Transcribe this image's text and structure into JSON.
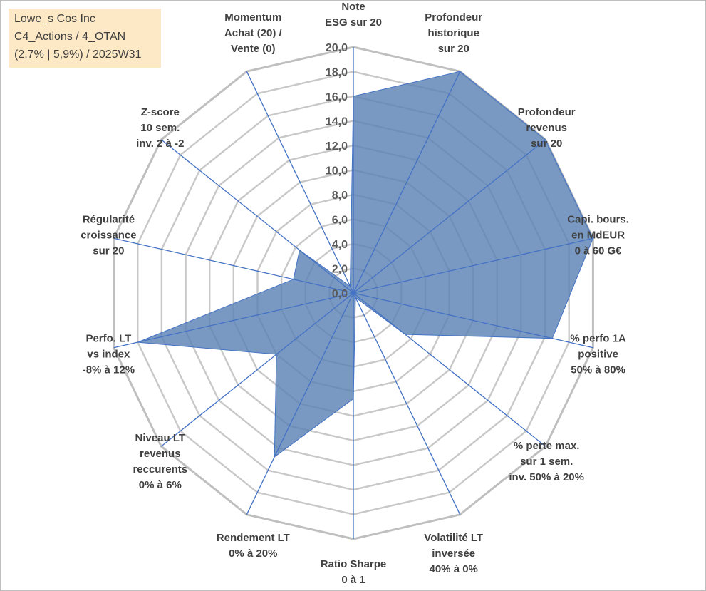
{
  "title_box": {
    "line1": "Lowe_s Cos Inc",
    "line2": "C4_Actions / 4_OTAN",
    "line3": "(2,7% | 5,9%) / 2025W31"
  },
  "colors": {
    "fill": "#5b83b4",
    "axis": "#4472c4",
    "grid": "#c8c8c8",
    "title_bg": "#fde9c6"
  },
  "chart_data": {
    "type": "radar",
    "rmin": 0,
    "rmax": 20,
    "tick_step": 2,
    "tick_labels": [
      "0,0",
      "2,0",
      "4,0",
      "6,0",
      "8,0",
      "10,0",
      "12,0",
      "14,0",
      "16,0",
      "18,0",
      "20,0"
    ],
    "grid": true,
    "axes": [
      {
        "label": [
          "Note",
          "ESG sur 20"
        ],
        "value": 16.0
      },
      {
        "label": [
          "Profondeur",
          "historique",
          "sur 20"
        ],
        "value": 20.0
      },
      {
        "label": [
          "Profondeur",
          "revenus",
          "sur 20"
        ],
        "value": 20.0
      },
      {
        "label": [
          "Capi. bours.",
          "en MdEUR",
          "0 à 60 G€"
        ],
        "value": 20.0
      },
      {
        "label": [
          "% perfo 1A",
          "positive",
          "50% à 80%"
        ],
        "value": 16.6
      },
      {
        "label": [
          "% perte max.",
          "sur 1 sem.",
          "inv. 50% à 20%"
        ],
        "value": 5.4
      },
      {
        "label": [
          "Volatilité LT",
          "inversée",
          "40% à 0%"
        ],
        "value": 0.4
      },
      {
        "label": [
          "Ratio Sharpe",
          "0 à 1"
        ],
        "value": 8.6
      },
      {
        "label": [
          "Rendement LT",
          "0% à 20%"
        ],
        "value": 14.8
      },
      {
        "label": [
          "Niveau LT",
          "revenus",
          "reccurents",
          "0% à 6%"
        ],
        "value": 8.0
      },
      {
        "label": [
          "Perfo. LT",
          "vs index",
          "-8% à 12%"
        ],
        "value": 18.0
      },
      {
        "label": [
          "Régularité",
          "croissance",
          "sur 20"
        ],
        "value": 5.0
      },
      {
        "label": [
          "Z-score",
          "10 sem.",
          "inv. 2 à -2"
        ],
        "value": 5.6
      },
      {
        "label": [
          "Momentum",
          "Achat (20) /",
          "Vente (0)"
        ],
        "value": 0.6
      }
    ]
  }
}
